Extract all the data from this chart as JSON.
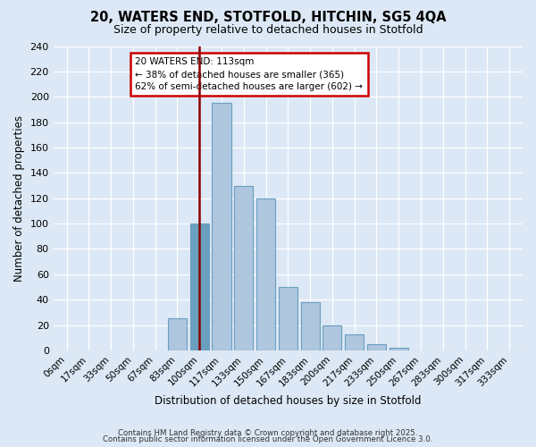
{
  "title1": "20, WATERS END, STOTFOLD, HITCHIN, SG5 4QA",
  "title2": "Size of property relative to detached houses in Stotfold",
  "xlabel": "Distribution of detached houses by size in Stotfold",
  "ylabel": "Number of detached properties",
  "bins": [
    "0sqm",
    "17sqm",
    "33sqm",
    "50sqm",
    "67sqm",
    "83sqm",
    "100sqm",
    "117sqm",
    "133sqm",
    "150sqm",
    "167sqm",
    "183sqm",
    "200sqm",
    "217sqm",
    "233sqm",
    "250sqm",
    "267sqm",
    "283sqm",
    "300sqm",
    "317sqm",
    "333sqm"
  ],
  "values": [
    0,
    0,
    0,
    0,
    0,
    25,
    100,
    195,
    130,
    120,
    50,
    38,
    20,
    13,
    5,
    2,
    0,
    0,
    0,
    0,
    0
  ],
  "bar_color": "#aec6de",
  "bar_edge_color": "#6a9fc0",
  "highlight_bar_index": 6,
  "highlight_color": "#6a9fc0",
  "vline_x_index": 6,
  "vline_color": "#8b0000",
  "annotation_box_color": "#ffffff",
  "annotation_box_edge": "#cc0000",
  "ylim": [
    0,
    240
  ],
  "yticks": [
    0,
    20,
    40,
    60,
    80,
    100,
    120,
    140,
    160,
    180,
    200,
    220,
    240
  ],
  "footer1": "Contains HM Land Registry data © Crown copyright and database right 2025.",
  "footer2": "Contains public sector information licensed under the Open Government Licence 3.0.",
  "fig_bg_color": "#dce8f5",
  "plot_bg_color": "#dce8f5"
}
